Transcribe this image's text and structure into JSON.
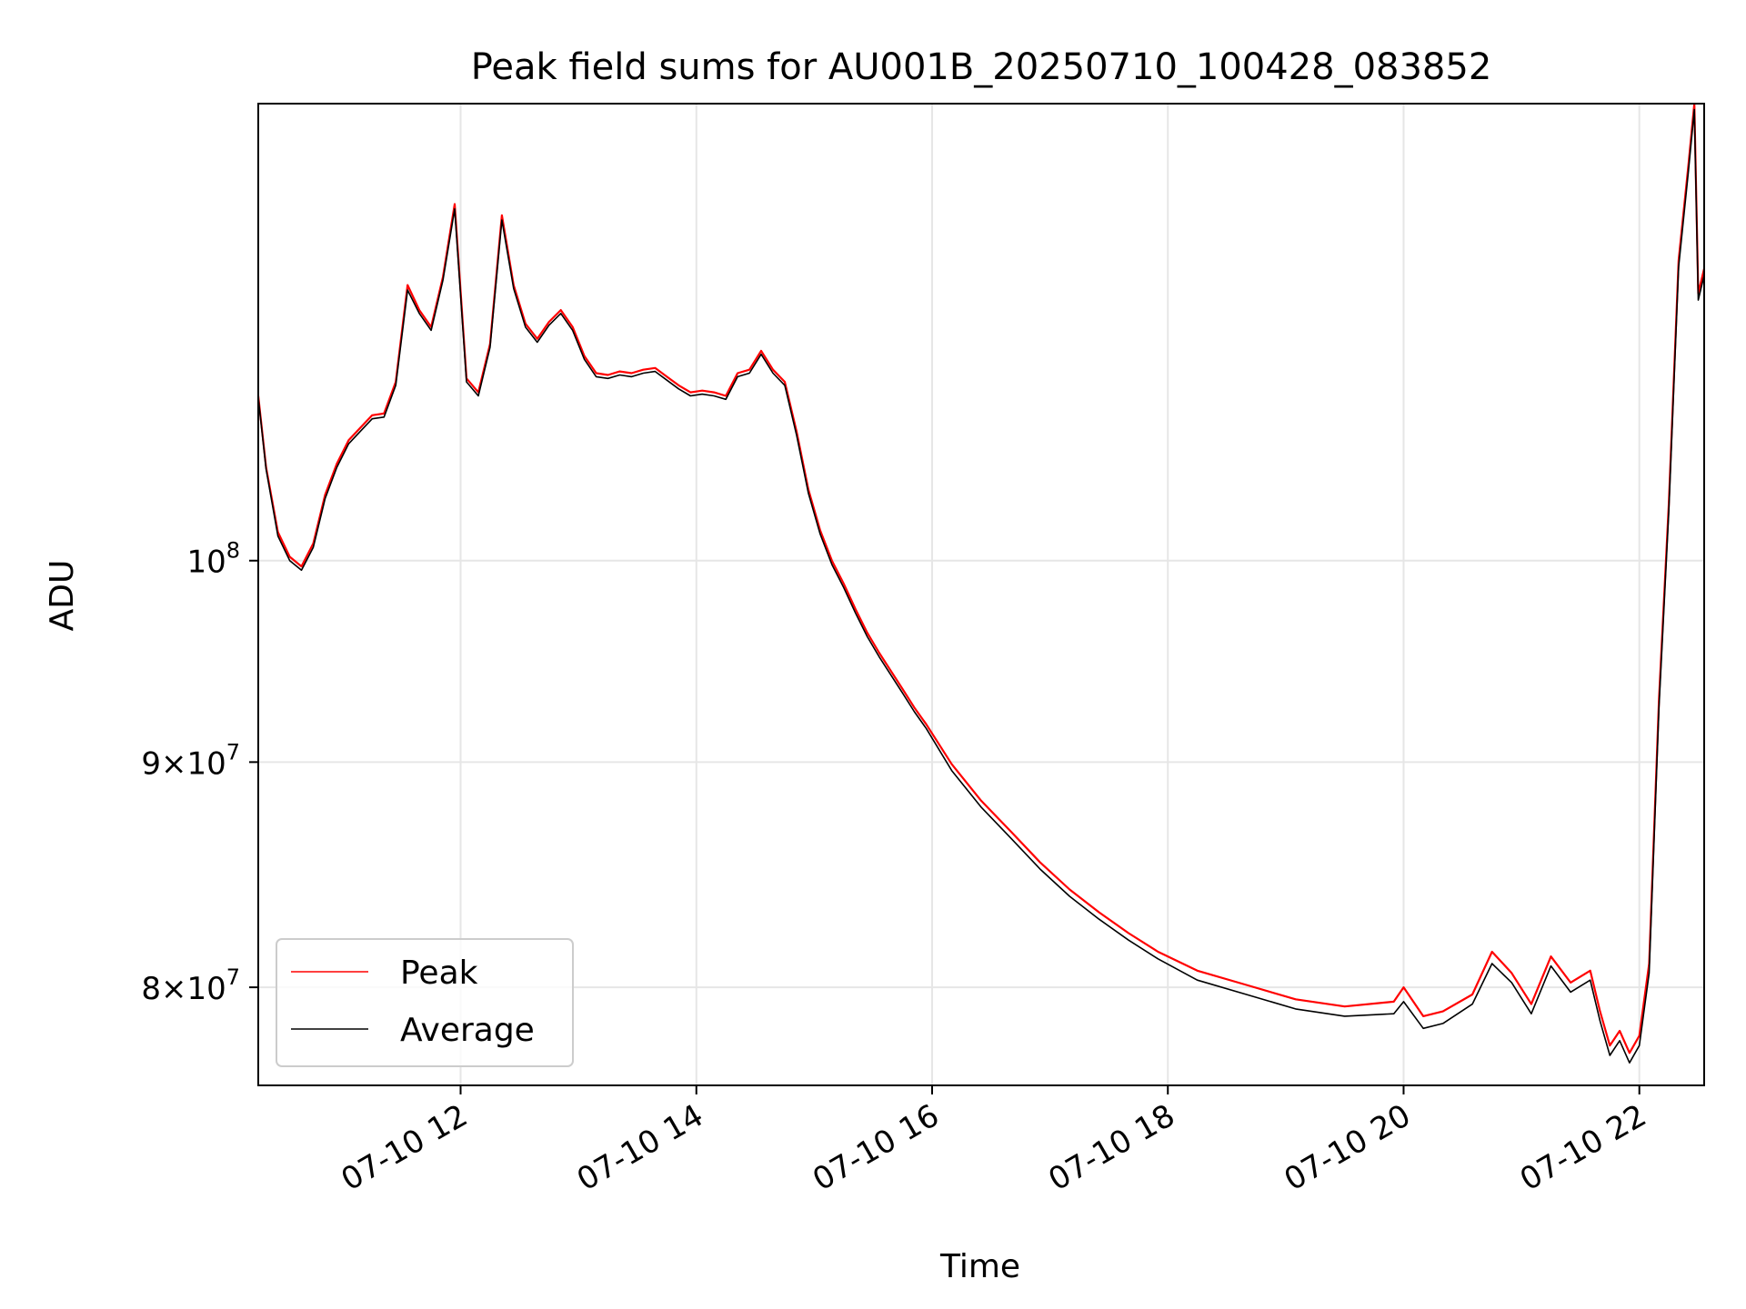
{
  "chart_data": {
    "type": "line",
    "title": "Peak field sums for AU001B_20250710_100428_083852",
    "xlabel": "Time",
    "ylabel": "ADU",
    "y_scale": "log",
    "xlim": [
      "2025-07-10T10:17",
      "2025-07-10T22:33"
    ],
    "ylim": [
      76000000,
      127000000
    ],
    "x_ticks": [
      "2025-07-10T12:00",
      "2025-07-10T14:00",
      "2025-07-10T16:00",
      "2025-07-10T18:00",
      "2025-07-10T20:00",
      "2025-07-10T22:00"
    ],
    "x_tick_labels": [
      "07-10 12",
      "07-10 14",
      "07-10 16",
      "07-10 18",
      "07-10 20",
      "07-10 22"
    ],
    "y_ticks": [
      80000000,
      90000000,
      100000000
    ],
    "y_tick_labels": [
      {
        "base": "8×10",
        "exp": "7"
      },
      {
        "base": "9×10",
        "exp": "7"
      },
      {
        "base": "10",
        "exp": "8"
      }
    ],
    "grid": true,
    "legend_position": "lower-left",
    "series": [
      {
        "name": "Peak",
        "color": "#ff0000",
        "x": [
          "2025-07-10T10:17",
          "2025-07-10T10:21",
          "2025-07-10T10:27",
          "2025-07-10T10:33",
          "2025-07-10T10:39",
          "2025-07-10T10:45",
          "2025-07-10T10:51",
          "2025-07-10T10:57",
          "2025-07-10T11:03",
          "2025-07-10T11:09",
          "2025-07-10T11:15",
          "2025-07-10T11:21",
          "2025-07-10T11:27",
          "2025-07-10T11:33",
          "2025-07-10T11:39",
          "2025-07-10T11:45",
          "2025-07-10T11:51",
          "2025-07-10T11:57",
          "2025-07-10T12:03",
          "2025-07-10T12:09",
          "2025-07-10T12:15",
          "2025-07-10T12:21",
          "2025-07-10T12:27",
          "2025-07-10T12:33",
          "2025-07-10T12:39",
          "2025-07-10T12:45",
          "2025-07-10T12:51",
          "2025-07-10T12:57",
          "2025-07-10T13:03",
          "2025-07-10T13:09",
          "2025-07-10T13:15",
          "2025-07-10T13:21",
          "2025-07-10T13:27",
          "2025-07-10T13:33",
          "2025-07-10T13:39",
          "2025-07-10T13:45",
          "2025-07-10T13:51",
          "2025-07-10T13:57",
          "2025-07-10T14:03",
          "2025-07-10T14:09",
          "2025-07-10T14:15",
          "2025-07-10T14:21",
          "2025-07-10T14:27",
          "2025-07-10T14:33",
          "2025-07-10T14:39",
          "2025-07-10T14:45",
          "2025-07-10T14:51",
          "2025-07-10T14:57",
          "2025-07-10T15:03",
          "2025-07-10T15:09",
          "2025-07-10T15:15",
          "2025-07-10T15:21",
          "2025-07-10T15:27",
          "2025-07-10T15:33",
          "2025-07-10T15:39",
          "2025-07-10T15:45",
          "2025-07-10T15:51",
          "2025-07-10T15:57",
          "2025-07-10T16:10",
          "2025-07-10T16:25",
          "2025-07-10T16:40",
          "2025-07-10T16:55",
          "2025-07-10T17:10",
          "2025-07-10T17:25",
          "2025-07-10T17:40",
          "2025-07-10T17:55",
          "2025-07-10T18:15",
          "2025-07-10T18:40",
          "2025-07-10T19:05",
          "2025-07-10T19:30",
          "2025-07-10T19:55",
          "2025-07-10T20:00",
          "2025-07-10T20:10",
          "2025-07-10T20:20",
          "2025-07-10T20:35",
          "2025-07-10T20:45",
          "2025-07-10T20:55",
          "2025-07-10T21:05",
          "2025-07-10T21:15",
          "2025-07-10T21:25",
          "2025-07-10T21:35",
          "2025-07-10T21:40",
          "2025-07-10T21:45",
          "2025-07-10T21:50",
          "2025-07-10T21:55",
          "2025-07-10T22:00",
          "2025-07-10T22:05",
          "2025-07-10T22:10",
          "2025-07-10T22:15",
          "2025-07-10T22:20",
          "2025-07-10T22:25",
          "2025-07-10T22:28",
          "2025-07-10T22:30",
          "2025-07-10T22:33"
        ],
        "y": [
          109000000,
          105000000,
          101500000,
          100200000,
          99700000,
          100900000,
          103500000,
          105200000,
          106500000,
          107200000,
          107900000,
          108000000,
          109800000,
          115500000,
          114000000,
          113000000,
          116000000,
          120500000,
          110000000,
          109200000,
          112000000,
          119800000,
          115500000,
          113200000,
          112300000,
          113300000,
          114000000,
          113000000,
          111300000,
          110300000,
          110200000,
          110400000,
          110300000,
          110500000,
          110600000,
          110100000,
          109600000,
          109200000,
          109300000,
          109200000,
          109000000,
          110300000,
          110500000,
          111600000,
          110500000,
          109800000,
          107000000,
          103800000,
          101600000,
          100000000,
          98800000,
          97500000,
          96300000,
          95300000,
          94400000,
          93500000,
          92600000,
          91800000,
          89900000,
          88200000,
          86800000,
          85400000,
          84200000,
          83200000,
          82300000,
          81500000,
          80700000,
          80100000,
          79500000,
          79200000,
          79400000,
          80000000,
          78800000,
          79000000,
          79700000,
          81500000,
          80600000,
          79300000,
          81300000,
          80200000,
          80700000,
          79000000,
          77600000,
          78200000,
          77300000,
          78000000,
          81000000,
          93000000,
          103000000,
          117000000,
          123000000,
          127000000,
          115000000,
          116500000
        ]
      },
      {
        "name": "Average",
        "color": "#000000",
        "x": [
          "2025-07-10T10:17",
          "2025-07-10T10:21",
          "2025-07-10T10:27",
          "2025-07-10T10:33",
          "2025-07-10T10:39",
          "2025-07-10T10:45",
          "2025-07-10T10:51",
          "2025-07-10T10:57",
          "2025-07-10T11:03",
          "2025-07-10T11:09",
          "2025-07-10T11:15",
          "2025-07-10T11:21",
          "2025-07-10T11:27",
          "2025-07-10T11:33",
          "2025-07-10T11:39",
          "2025-07-10T11:45",
          "2025-07-10T11:51",
          "2025-07-10T11:57",
          "2025-07-10T12:03",
          "2025-07-10T12:09",
          "2025-07-10T12:15",
          "2025-07-10T12:21",
          "2025-07-10T12:27",
          "2025-07-10T12:33",
          "2025-07-10T12:39",
          "2025-07-10T12:45",
          "2025-07-10T12:51",
          "2025-07-10T12:57",
          "2025-07-10T13:03",
          "2025-07-10T13:09",
          "2025-07-10T13:15",
          "2025-07-10T13:21",
          "2025-07-10T13:27",
          "2025-07-10T13:33",
          "2025-07-10T13:39",
          "2025-07-10T13:45",
          "2025-07-10T13:51",
          "2025-07-10T13:57",
          "2025-07-10T14:03",
          "2025-07-10T14:09",
          "2025-07-10T14:15",
          "2025-07-10T14:21",
          "2025-07-10T14:27",
          "2025-07-10T14:33",
          "2025-07-10T14:39",
          "2025-07-10T14:45",
          "2025-07-10T14:51",
          "2025-07-10T14:57",
          "2025-07-10T15:03",
          "2025-07-10T15:09",
          "2025-07-10T15:15",
          "2025-07-10T15:21",
          "2025-07-10T15:27",
          "2025-07-10T15:33",
          "2025-07-10T15:39",
          "2025-07-10T15:45",
          "2025-07-10T15:51",
          "2025-07-10T15:57",
          "2025-07-10T16:10",
          "2025-07-10T16:25",
          "2025-07-10T16:40",
          "2025-07-10T16:55",
          "2025-07-10T17:10",
          "2025-07-10T17:25",
          "2025-07-10T17:40",
          "2025-07-10T17:55",
          "2025-07-10T18:15",
          "2025-07-10T18:40",
          "2025-07-10T19:05",
          "2025-07-10T19:30",
          "2025-07-10T19:55",
          "2025-07-10T20:00",
          "2025-07-10T20:10",
          "2025-07-10T20:20",
          "2025-07-10T20:35",
          "2025-07-10T20:45",
          "2025-07-10T20:55",
          "2025-07-10T21:05",
          "2025-07-10T21:15",
          "2025-07-10T21:25",
          "2025-07-10T21:35",
          "2025-07-10T21:40",
          "2025-07-10T21:45",
          "2025-07-10T21:50",
          "2025-07-10T21:55",
          "2025-07-10T22:00",
          "2025-07-10T22:05",
          "2025-07-10T22:10",
          "2025-07-10T22:15",
          "2025-07-10T22:20",
          "2025-07-10T22:25",
          "2025-07-10T22:28",
          "2025-07-10T22:30",
          "2025-07-10T22:33"
        ],
        "y": [
          108900000,
          104900000,
          101300000,
          100000000,
          99500000,
          100700000,
          103300000,
          105000000,
          106300000,
          107000000,
          107700000,
          107800000,
          109600000,
          115200000,
          113800000,
          112800000,
          115800000,
          120200000,
          109800000,
          109000000,
          111800000,
          119500000,
          115300000,
          113000000,
          112100000,
          113100000,
          113800000,
          112800000,
          111100000,
          110100000,
          110000000,
          110200000,
          110100000,
          110300000,
          110400000,
          109900000,
          109400000,
          109000000,
          109100000,
          109000000,
          108800000,
          110100000,
          110300000,
          111400000,
          110300000,
          109600000,
          106800000,
          103600000,
          101400000,
          99800000,
          98600000,
          97300000,
          96100000,
          95100000,
          94200000,
          93300000,
          92400000,
          91600000,
          89600000,
          87900000,
          86500000,
          85100000,
          83900000,
          82900000,
          82000000,
          81200000,
          80300000,
          79700000,
          79100000,
          78800000,
          78900000,
          79400000,
          78300000,
          78500000,
          79300000,
          81000000,
          80200000,
          78900000,
          80900000,
          79800000,
          80300000,
          78600000,
          77200000,
          77800000,
          76900000,
          77600000,
          80600000,
          92600000,
          102600000,
          116600000,
          122600000,
          126600000,
          114600000,
          116100000
        ]
      }
    ]
  }
}
